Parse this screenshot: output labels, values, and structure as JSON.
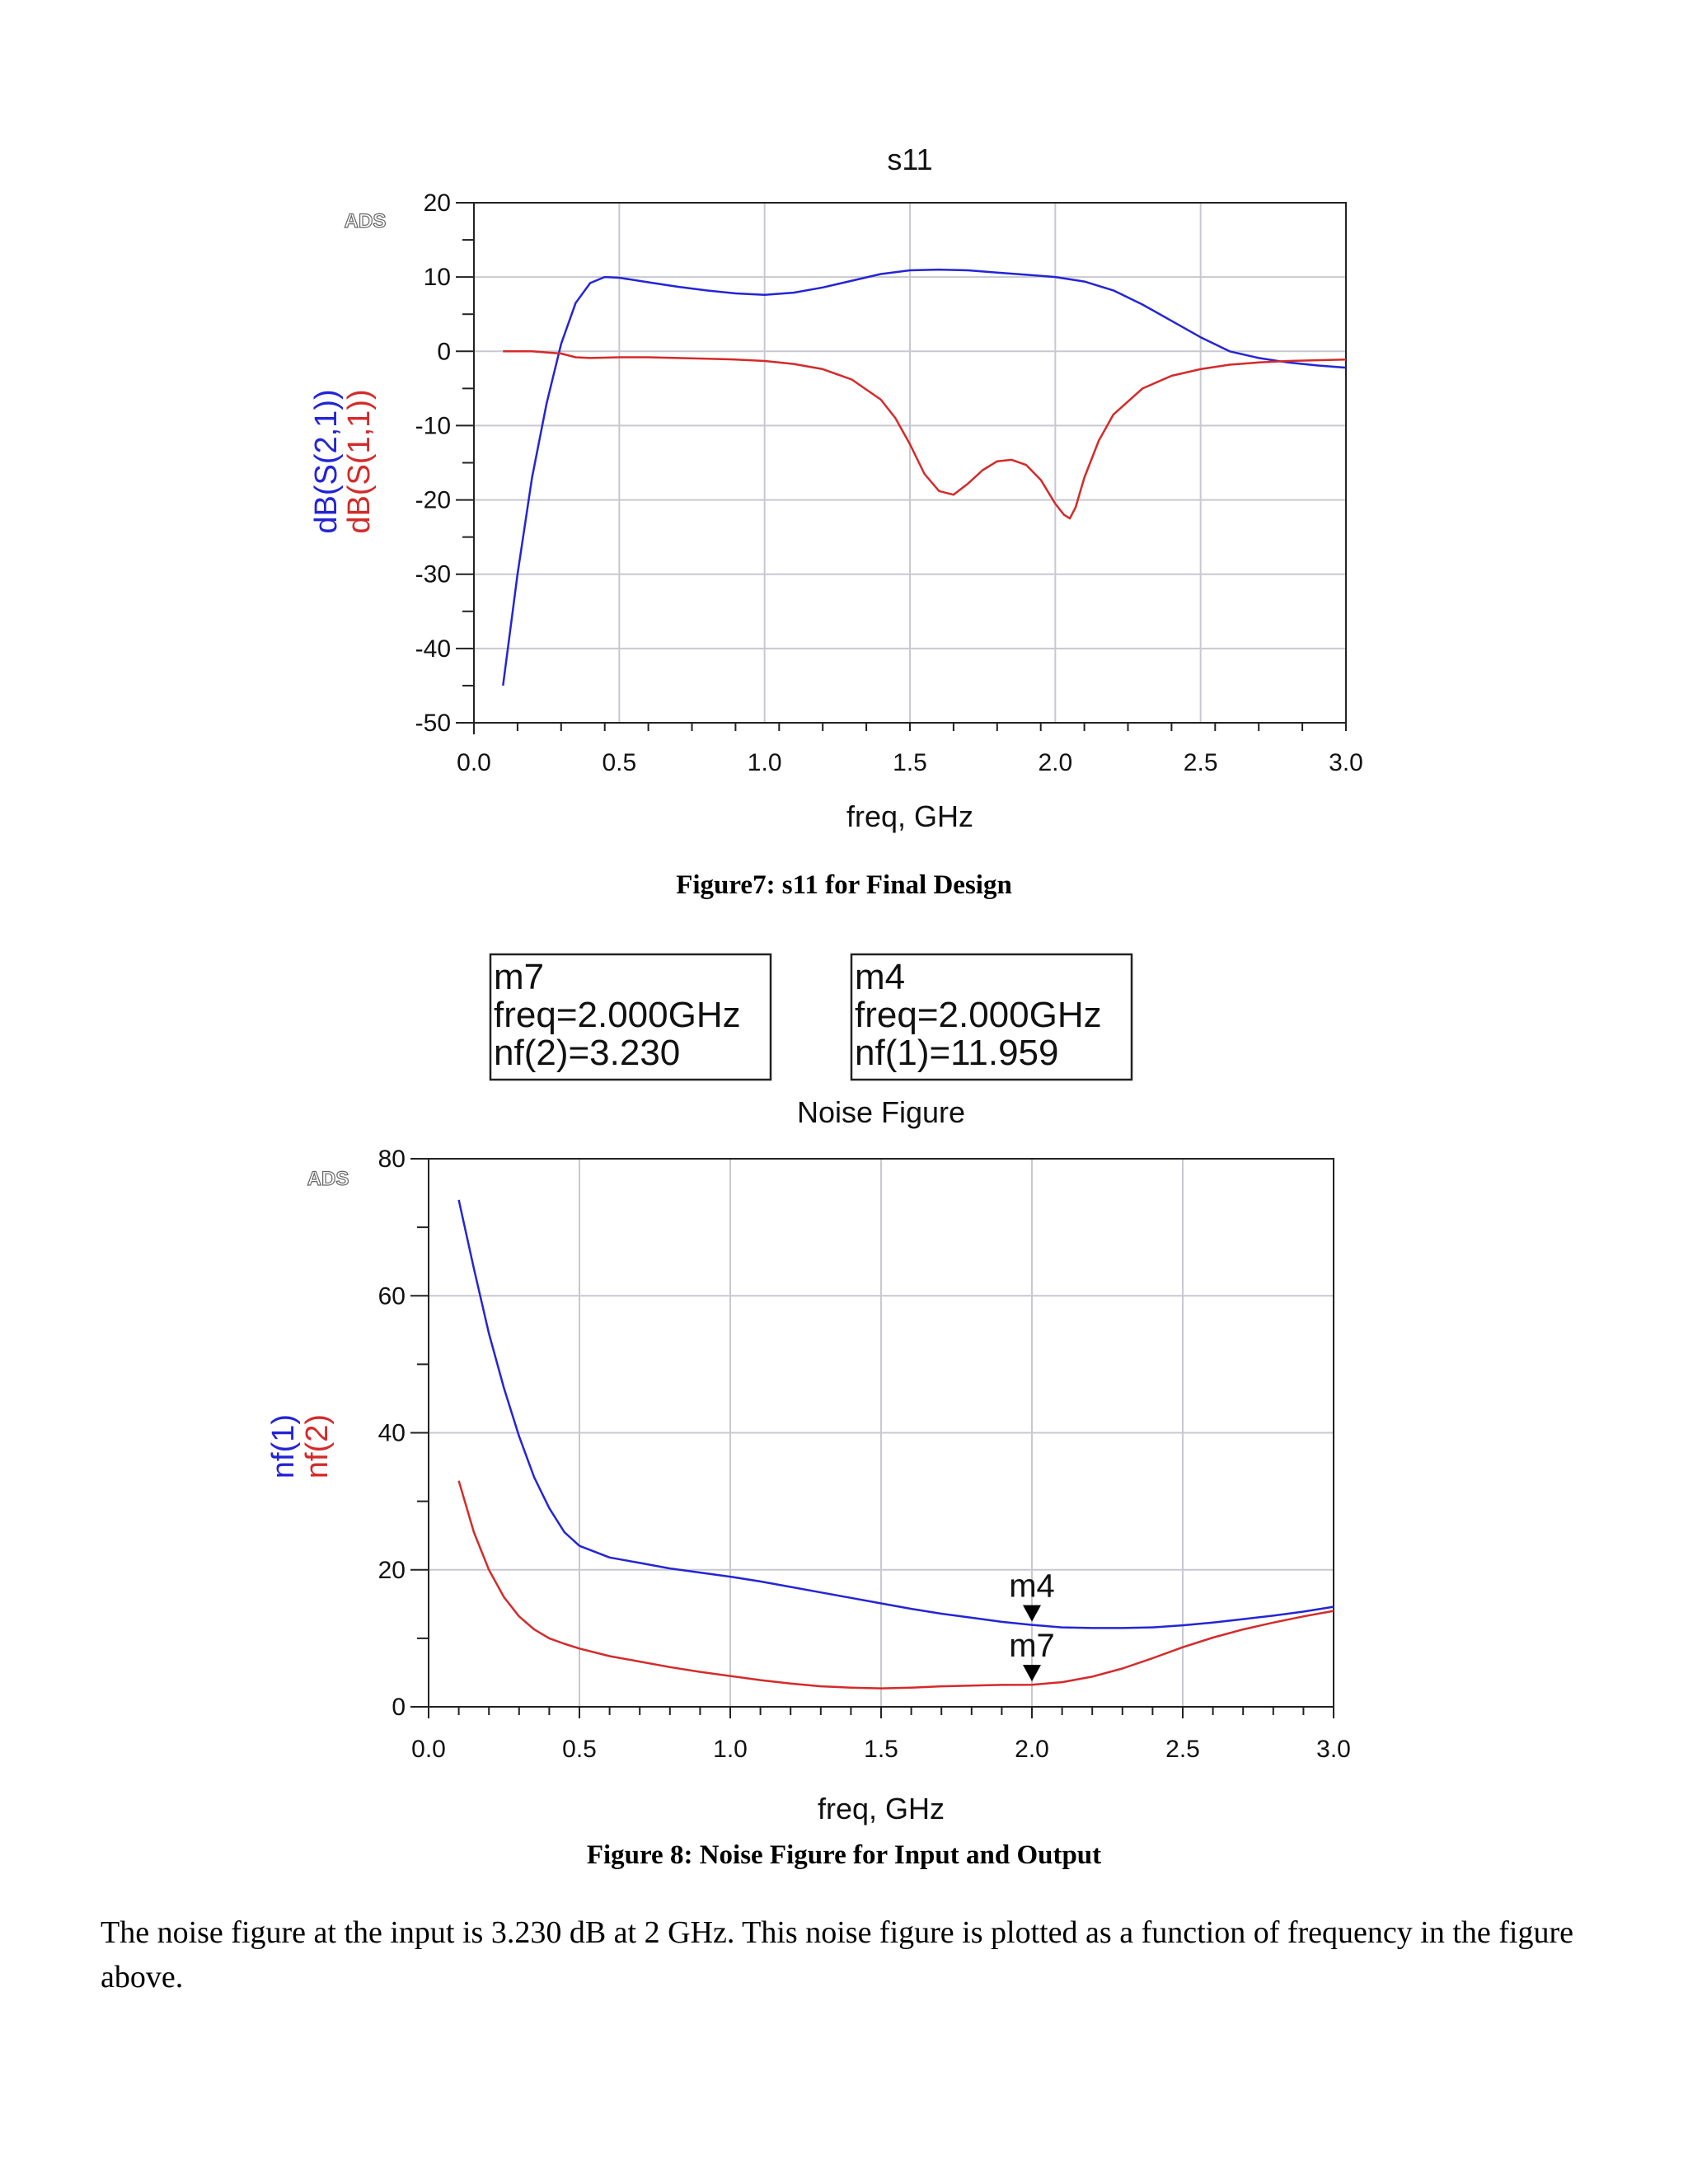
{
  "chart_data": [
    {
      "type": "line",
      "title": "s11",
      "brand": "ADS",
      "xlabel": "freq, GHz",
      "ylabels": [
        "dB(S(2,1))",
        "dB(S(1,1))"
      ],
      "xlim": [
        0.0,
        3.0
      ],
      "ylim": [
        -50,
        20
      ],
      "x_ticks": [
        "0.0",
        "0.5",
        "1.0",
        "1.5",
        "2.0",
        "2.5",
        "3.0"
      ],
      "y_ticks": [
        "20",
        "10",
        "0",
        "-10",
        "-20",
        "-30",
        "-40",
        "-50"
      ],
      "grid": true,
      "series": [
        {
          "name": "dB(S(2,1))",
          "color": "#2424d6",
          "x": [
            0.1,
            0.15,
            0.2,
            0.25,
            0.3,
            0.35,
            0.4,
            0.45,
            0.5,
            0.6,
            0.7,
            0.8,
            0.9,
            1.0,
            1.1,
            1.2,
            1.3,
            1.4,
            1.5,
            1.6,
            1.7,
            1.8,
            1.9,
            2.0,
            2.1,
            2.2,
            2.3,
            2.4,
            2.5,
            2.6,
            2.7,
            2.8,
            2.9,
            3.0
          ],
          "y": [
            -45.0,
            -30.0,
            -17.0,
            -7.0,
            1.0,
            6.5,
            9.2,
            10.0,
            9.9,
            9.3,
            8.7,
            8.2,
            7.8,
            7.6,
            7.9,
            8.6,
            9.5,
            10.4,
            10.9,
            11.0,
            10.9,
            10.6,
            10.3,
            10.0,
            9.4,
            8.2,
            6.3,
            4.1,
            1.9,
            0.0,
            -0.9,
            -1.5,
            -1.9,
            -2.2
          ]
        },
        {
          "name": "dB(S(1,1))",
          "color": "#d42a2a",
          "x": [
            0.1,
            0.2,
            0.3,
            0.35,
            0.4,
            0.5,
            0.6,
            0.7,
            0.8,
            0.9,
            1.0,
            1.1,
            1.2,
            1.3,
            1.4,
            1.45,
            1.5,
            1.55,
            1.6,
            1.65,
            1.7,
            1.75,
            1.8,
            1.85,
            1.9,
            1.95,
            2.0,
            2.03,
            2.05,
            2.07,
            2.1,
            2.15,
            2.2,
            2.3,
            2.4,
            2.5,
            2.6,
            2.7,
            2.8,
            2.9,
            3.0
          ],
          "y": [
            0.0,
            0.0,
            -0.3,
            -0.8,
            -0.9,
            -0.8,
            -0.8,
            -0.9,
            -1.0,
            -1.1,
            -1.3,
            -1.7,
            -2.4,
            -3.8,
            -6.5,
            -9.0,
            -12.5,
            -16.5,
            -18.8,
            -19.3,
            -17.8,
            -16.0,
            -14.8,
            -14.6,
            -15.3,
            -17.3,
            -20.5,
            -22.0,
            -22.5,
            -21.0,
            -17.0,
            -12.0,
            -8.5,
            -5.0,
            -3.3,
            -2.4,
            -1.8,
            -1.5,
            -1.3,
            -1.2,
            -1.1
          ]
        }
      ]
    },
    {
      "type": "line",
      "title": "Noise Figure",
      "brand": "ADS",
      "xlabel": "freq, GHz",
      "ylabels": [
        "nf(1)",
        "nf(2)"
      ],
      "xlim": [
        0.0,
        3.0
      ],
      "ylim": [
        0,
        80
      ],
      "x_ticks": [
        "0.0",
        "0.5",
        "1.0",
        "1.5",
        "2.0",
        "2.5",
        "3.0"
      ],
      "y_ticks": [
        "80",
        "60",
        "40",
        "20",
        "0"
      ],
      "grid": true,
      "series": [
        {
          "name": "nf(1)",
          "color": "#2424d6",
          "x": [
            0.1,
            0.15,
            0.2,
            0.25,
            0.3,
            0.35,
            0.4,
            0.45,
            0.5,
            0.6,
            0.7,
            0.8,
            0.9,
            1.0,
            1.1,
            1.2,
            1.3,
            1.4,
            1.5,
            1.6,
            1.7,
            1.8,
            1.9,
            2.0,
            2.1,
            2.2,
            2.3,
            2.4,
            2.5,
            2.6,
            2.7,
            2.8,
            2.9,
            3.0
          ],
          "y": [
            74.0,
            64.0,
            54.5,
            46.5,
            39.5,
            33.5,
            29.0,
            25.5,
            23.5,
            21.8,
            21.0,
            20.2,
            19.6,
            19.0,
            18.3,
            17.5,
            16.7,
            15.9,
            15.1,
            14.3,
            13.6,
            13.0,
            12.4,
            11.959,
            11.6,
            11.5,
            11.5,
            11.6,
            11.9,
            12.3,
            12.8,
            13.3,
            13.9,
            14.6
          ]
        },
        {
          "name": "nf(2)",
          "color": "#d42a2a",
          "x": [
            0.1,
            0.15,
            0.2,
            0.25,
            0.3,
            0.35,
            0.4,
            0.45,
            0.5,
            0.6,
            0.7,
            0.8,
            0.9,
            1.0,
            1.1,
            1.2,
            1.3,
            1.4,
            1.5,
            1.6,
            1.7,
            1.8,
            1.9,
            2.0,
            2.1,
            2.2,
            2.3,
            2.4,
            2.5,
            2.6,
            2.7,
            2.8,
            2.9,
            3.0
          ],
          "y": [
            33.0,
            25.5,
            20.0,
            16.0,
            13.2,
            11.3,
            10.0,
            9.2,
            8.5,
            7.4,
            6.6,
            5.8,
            5.1,
            4.5,
            3.9,
            3.4,
            3.0,
            2.8,
            2.7,
            2.8,
            3.0,
            3.1,
            3.2,
            3.23,
            3.6,
            4.4,
            5.6,
            7.1,
            8.7,
            10.1,
            11.3,
            12.3,
            13.2,
            14.0
          ]
        }
      ],
      "markers": [
        {
          "id": "m4",
          "series": "nf(1)",
          "x": 2.0,
          "y": 11.959,
          "lines": [
            "m4",
            "freq=2.000GHz",
            "nf(1)=11.959"
          ]
        },
        {
          "id": "m7",
          "series": "nf(2)",
          "x": 2.0,
          "y": 3.23,
          "lines": [
            "m7",
            "freq=2.000GHz",
            "nf(2)=3.230"
          ]
        }
      ]
    }
  ],
  "captions": {
    "figure7": "Figure7: s11 for Final Design",
    "figure8": "Figure 8: Noise Figure for Input and Output"
  },
  "paragraph": "The noise figure at the input is 3.230 dB at 2 GHz. This noise figure is plotted as a function of frequency in the figure above."
}
